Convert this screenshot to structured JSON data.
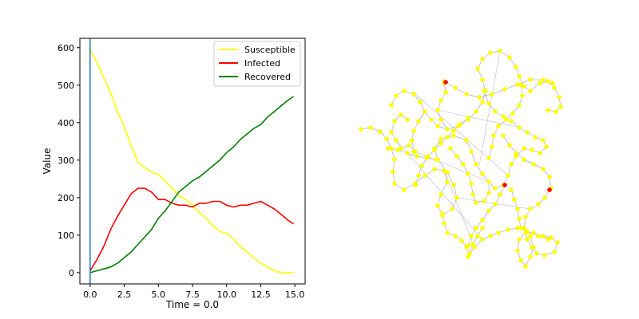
{
  "chart_data": [
    {
      "type": "line",
      "xlabel": "Time = 0.0",
      "ylabel": "Value",
      "xlim": [
        -0.75,
        15.75
      ],
      "ylim": [
        -30,
        625
      ],
      "xticks": [
        0.0,
        2.5,
        5.0,
        7.5,
        10.0,
        12.5,
        15.0
      ],
      "xtick_labels": [
        "0.0",
        "2.5",
        "5.0",
        "7.5",
        "10.0",
        "12.5",
        "15.0"
      ],
      "yticks": [
        0,
        100,
        200,
        300,
        400,
        500,
        600
      ],
      "ytick_labels": [
        "0",
        "100",
        "200",
        "300",
        "400",
        "500",
        "600"
      ],
      "time_marker_x": 0.0,
      "legend_position": "top-right",
      "x": [
        0,
        0.5,
        1,
        1.5,
        2,
        2.5,
        3,
        3.5,
        4,
        4.5,
        5,
        5.5,
        6,
        6.5,
        7,
        7.5,
        8,
        8.5,
        9,
        9.5,
        10,
        10.5,
        11,
        11.5,
        12,
        12.5,
        13,
        13.5,
        14,
        14.5,
        14.9
      ],
      "series": [
        {
          "name": "Susceptible",
          "color": "#ffff00",
          "values": [
            595,
            560,
            520,
            480,
            430,
            390,
            340,
            295,
            280,
            268,
            262,
            245,
            225,
            205,
            195,
            180,
            160,
            145,
            125,
            110,
            105,
            90,
            70,
            55,
            40,
            25,
            15,
            5,
            0,
            0,
            0
          ]
        },
        {
          "name": "Infected",
          "color": "#ff0000",
          "values": [
            5,
            35,
            70,
            115,
            150,
            180,
            210,
            225,
            225,
            215,
            195,
            195,
            185,
            180,
            180,
            175,
            185,
            185,
            190,
            190,
            180,
            175,
            180,
            180,
            185,
            190,
            180,
            170,
            155,
            140,
            130
          ]
        },
        {
          "name": "Recovered",
          "color": "#008000",
          "values": [
            0,
            5,
            10,
            15,
            25,
            40,
            55,
            75,
            95,
            115,
            145,
            165,
            190,
            215,
            230,
            245,
            255,
            270,
            285,
            300,
            320,
            335,
            355,
            370,
            385,
            395,
            415,
            430,
            445,
            460,
            470
          ]
        }
      ]
    },
    {
      "type": "network",
      "node_color": "#ffff00",
      "infected_node_color": "#ff0000",
      "edge_color": "#9a9ab0",
      "infected_node_count": 3
    }
  ]
}
